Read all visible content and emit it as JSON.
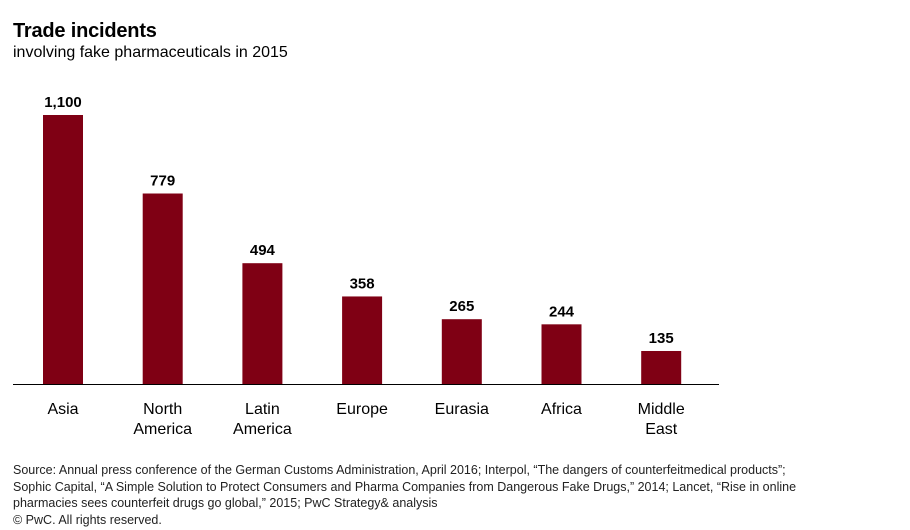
{
  "title": "Trade incidents",
  "subtitle": "involving fake pharmaceuticals in 2015",
  "colors": {
    "bar": "#7f0014",
    "axis": "#000000"
  },
  "chart_data": {
    "type": "bar",
    "categories": [
      [
        "Asia"
      ],
      [
        "North",
        "America"
      ],
      [
        "Latin",
        "America"
      ],
      [
        "Europe"
      ],
      [
        "Eurasia"
      ],
      [
        "Africa"
      ],
      [
        "Middle",
        "East"
      ]
    ],
    "values": [
      1100,
      779,
      494,
      358,
      265,
      244,
      135
    ],
    "data_labels": [
      "1,100",
      "779",
      "494",
      "358",
      "265",
      "244",
      "135"
    ],
    "ylim": [
      0,
      1100
    ],
    "grid": false,
    "legend": "none"
  },
  "footer": {
    "source_lines": [
      "Source: Annual press conference of the German Customs Administration, April 2016; Interpol, “The dangers of counterfeitmedical products”;",
      "Sophic Capital, “A Simple Solution to Protect Consumers and Pharma Companies from Dangerous Fake Drugs,” 2014; Lancet, “Rise in online",
      "pharmacies sees counterfeit drugs go global,” 2015; PwC Strategy& analysis"
    ],
    "copyright": "© PwC. All rights reserved."
  }
}
